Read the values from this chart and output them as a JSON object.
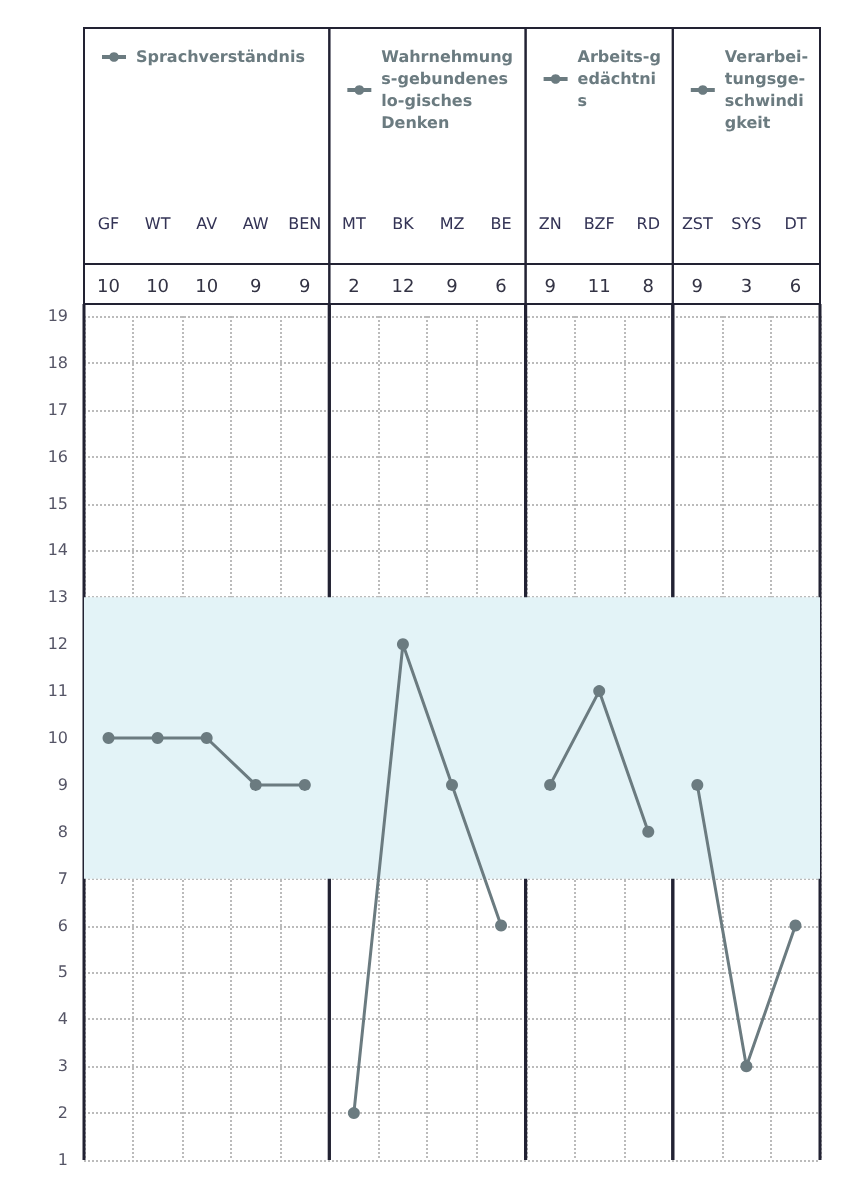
{
  "chart_data": {
    "type": "line",
    "categories": [
      "GF",
      "WT",
      "AV",
      "AW",
      "BEN",
      "MT",
      "BK",
      "MZ",
      "BE",
      "ZN",
      "BZF",
      "RD",
      "ZST",
      "SYS",
      "DT"
    ],
    "series": [
      {
        "name": "Sprachverständnis",
        "color": "#6b7b80",
        "values": [
          10,
          10,
          10,
          9,
          9,
          null,
          null,
          null,
          null,
          null,
          null,
          null,
          null,
          null,
          null
        ]
      },
      {
        "name": "Wahrnehmungs-gebundenes lo-gisches Denken",
        "color": "#6b7b80",
        "values": [
          null,
          null,
          null,
          null,
          null,
          2,
          12,
          9,
          6,
          null,
          null,
          null,
          null,
          null,
          null
        ]
      },
      {
        "name": "Arbeits-gedächtnis",
        "color": "#6b7b80",
        "values": [
          null,
          null,
          null,
          null,
          null,
          null,
          null,
          null,
          null,
          9,
          11,
          8,
          null,
          null,
          null
        ]
      },
      {
        "name": "Verarbei-tungsge-schwindigkeit",
        "color": "#6b7b80",
        "values": [
          null,
          null,
          null,
          null,
          null,
          null,
          null,
          null,
          null,
          null,
          null,
          null,
          9,
          3,
          6
        ]
      }
    ],
    "annotations": [
      "10",
      "10",
      "10",
      "9",
      "9",
      "2",
      "12",
      "9",
      "6",
      "9",
      "11",
      "8",
      "9",
      "3",
      "6"
    ],
    "ylim": [
      1,
      19
    ],
    "yticks": [
      1,
      2,
      3,
      4,
      5,
      6,
      7,
      8,
      9,
      10,
      11,
      12,
      13,
      14,
      15,
      16,
      17,
      18,
      19
    ],
    "bands": [
      {
        "axis": "y",
        "from": 7,
        "to": 13,
        "color": "#e3f3f7"
      }
    ],
    "grid": true,
    "marker": "circle",
    "line_style": "solid",
    "legend": "top"
  }
}
